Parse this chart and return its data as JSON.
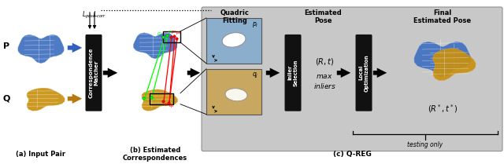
{
  "fig_width": 6.4,
  "fig_height": 2.09,
  "dpi": 100,
  "title_a": "(a) Input Pair",
  "title_b": "(b) Estimated\nCorrespondences",
  "title_c": "(c) Q-REG",
  "label_P": "P",
  "label_Q": "Q",
  "label_Lpose": "$L_{pose}$",
  "label_Lcorr": "$L_{corr}$",
  "box_corr_matcher": "Correspondence\nMatcher",
  "box_inlier": "Inlier\nSelection",
  "box_local_opt": "Local\nOptimization",
  "box_quadric": "Quadric\nFitting",
  "box_est_pose": "Estimated\nPose",
  "box_final": "Final\nEstimated Pose",
  "text_Rt": "$(R,t)$",
  "text_max_inliers": "$max$\n$inliers$",
  "text_Rst": "$(R^*,t^*)$",
  "text_testing": "testing only",
  "blue_color": "#4070c0",
  "gold_color": "#c89010",
  "black_color": "#111111",
  "gray_bg": "#c8c8c8",
  "white": "#ffffff",
  "quadric_blue_bg": "#8aaecc",
  "quadric_gold_bg": "#c8a860"
}
